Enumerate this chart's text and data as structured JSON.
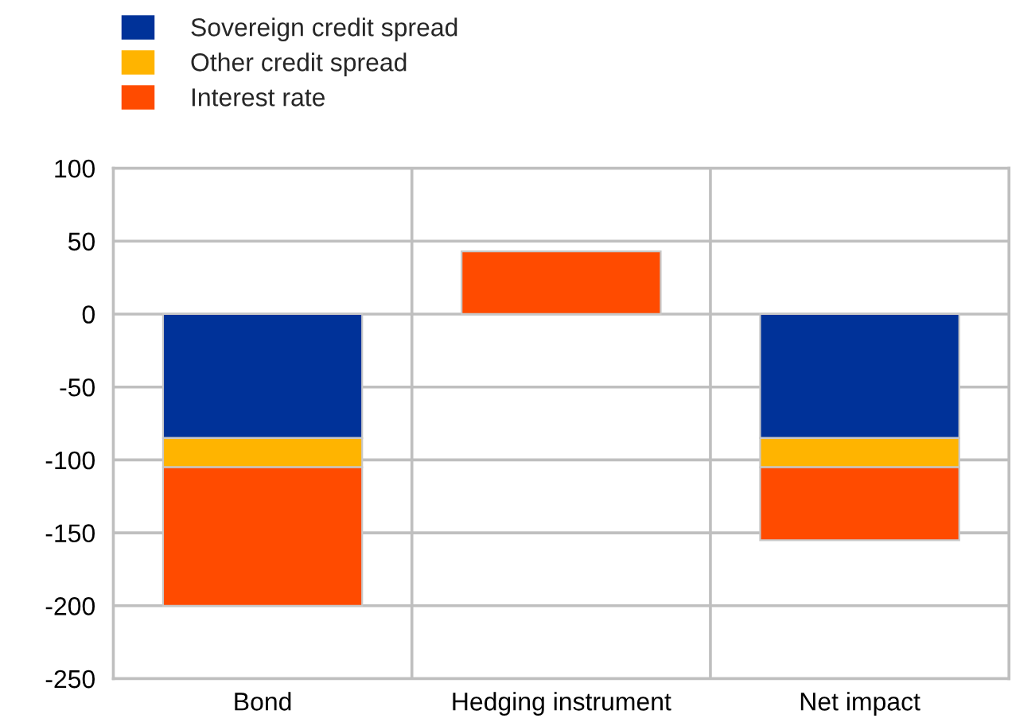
{
  "chart_data": {
    "type": "bar",
    "stacked": true,
    "categories": [
      "Bond",
      "Hedging instrument",
      "Net impact"
    ],
    "series": [
      {
        "name": "Sovereign credit spread",
        "color": "#003299",
        "values": [
          -85,
          null,
          -85
        ]
      },
      {
        "name": "Other credit spread",
        "color": "#ffb400",
        "values": [
          -20,
          null,
          -20
        ]
      },
      {
        "name": "Interest rate",
        "color": "#ff4b00",
        "values": [
          -95,
          43,
          -50
        ]
      }
    ],
    "ylim": [
      -250,
      100
    ],
    "yticks": [
      -250,
      -200,
      -150,
      -100,
      -50,
      0,
      50,
      100
    ],
    "grid": true,
    "legend": "top left"
  }
}
